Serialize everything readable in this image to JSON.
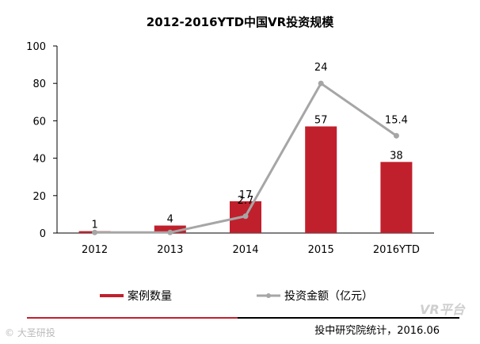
{
  "chart_data": {
    "type": "bar+line",
    "title": "2012-2016YTD中国VR投资规模",
    "categories": [
      "2012",
      "2013",
      "2014",
      "2015",
      "2016YTD"
    ],
    "series": [
      {
        "name": "案例数量",
        "kind": "bar",
        "color": "#c0202c",
        "values": [
          1,
          4,
          17,
          57,
          38
        ],
        "labels": [
          "1",
          "4",
          "17",
          "57",
          "38"
        ]
      },
      {
        "name": "投资金额（亿元）",
        "kind": "line",
        "color": "#a6a6a6",
        "values": [
          0.3,
          0.3,
          2.7,
          24,
          15.4
        ],
        "labels": [
          "",
          "",
          "2.7",
          "24",
          "15.4"
        ],
        "plotted": [
          0.3,
          0.3,
          9,
          80,
          52
        ]
      }
    ],
    "yticks": [
      "0",
      "20",
      "40",
      "60",
      "80",
      "100"
    ],
    "ylim": [
      0,
      100
    ],
    "legend_position": "bottom"
  },
  "source": "投中研究院统计，2016.06",
  "watermark_left": "© 大圣研投",
  "watermark_right": "VR平台"
}
